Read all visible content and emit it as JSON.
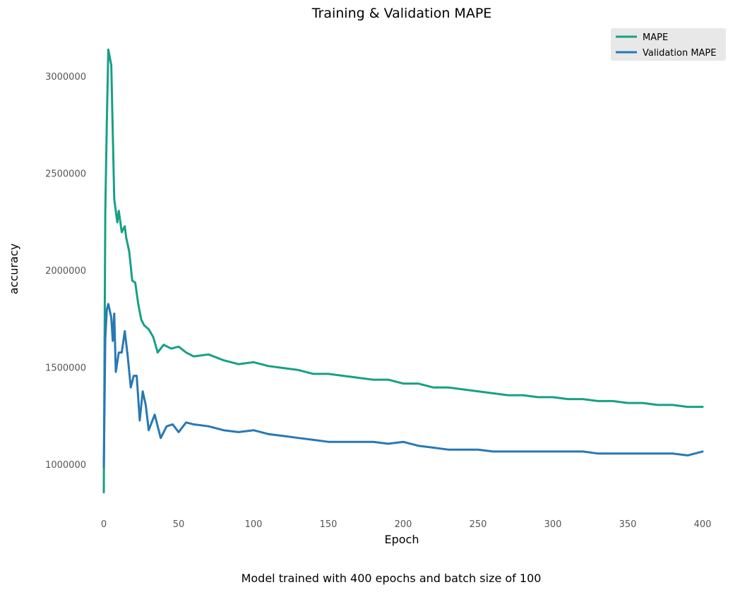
{
  "chart_data": {
    "type": "line",
    "title": "Training & Validation MAPE",
    "xlabel": "Epoch",
    "ylabel": "accuracy",
    "caption": "Model trained with 400 epochs and batch size of 100",
    "xlim": [
      0,
      400
    ],
    "ylim": [
      750000,
      3250000
    ],
    "xticks": [
      0,
      50,
      100,
      150,
      200,
      250,
      300,
      350,
      400
    ],
    "yticks": [
      1000000,
      1500000,
      2000000,
      2500000,
      3000000
    ],
    "grid": false,
    "legend_position": "top-right",
    "series": [
      {
        "name": "MAPE",
        "color": "#17a085",
        "points": [
          [
            0,
            860000
          ],
          [
            1,
            2300000
          ],
          [
            2,
            2750000
          ],
          [
            3,
            3140000
          ],
          [
            5,
            3060000
          ],
          [
            7,
            2370000
          ],
          [
            9,
            2250000
          ],
          [
            10,
            2310000
          ],
          [
            12,
            2200000
          ],
          [
            14,
            2230000
          ],
          [
            15,
            2170000
          ],
          [
            17,
            2100000
          ],
          [
            19,
            1950000
          ],
          [
            21,
            1940000
          ],
          [
            23,
            1830000
          ],
          [
            25,
            1750000
          ],
          [
            27,
            1720000
          ],
          [
            30,
            1700000
          ],
          [
            33,
            1660000
          ],
          [
            36,
            1580000
          ],
          [
            40,
            1620000
          ],
          [
            45,
            1600000
          ],
          [
            50,
            1610000
          ],
          [
            55,
            1580000
          ],
          [
            60,
            1560000
          ],
          [
            70,
            1570000
          ],
          [
            80,
            1540000
          ],
          [
            90,
            1520000
          ],
          [
            100,
            1530000
          ],
          [
            110,
            1510000
          ],
          [
            120,
            1500000
          ],
          [
            130,
            1490000
          ],
          [
            140,
            1470000
          ],
          [
            150,
            1470000
          ],
          [
            160,
            1460000
          ],
          [
            170,
            1450000
          ],
          [
            180,
            1440000
          ],
          [
            190,
            1440000
          ],
          [
            200,
            1420000
          ],
          [
            210,
            1420000
          ],
          [
            220,
            1400000
          ],
          [
            230,
            1400000
          ],
          [
            240,
            1390000
          ],
          [
            250,
            1380000
          ],
          [
            260,
            1370000
          ],
          [
            270,
            1360000
          ],
          [
            280,
            1360000
          ],
          [
            290,
            1350000
          ],
          [
            300,
            1350000
          ],
          [
            310,
            1340000
          ],
          [
            320,
            1340000
          ],
          [
            330,
            1330000
          ],
          [
            340,
            1330000
          ],
          [
            350,
            1320000
          ],
          [
            360,
            1320000
          ],
          [
            370,
            1310000
          ],
          [
            380,
            1310000
          ],
          [
            390,
            1300000
          ],
          [
            400,
            1300000
          ]
        ]
      },
      {
        "name": "Validation MAPE",
        "color": "#2878b5",
        "points": [
          [
            0,
            990000
          ],
          [
            1,
            1650000
          ],
          [
            2,
            1800000
          ],
          [
            3,
            1830000
          ],
          [
            5,
            1760000
          ],
          [
            6,
            1640000
          ],
          [
            7,
            1780000
          ],
          [
            8,
            1480000
          ],
          [
            10,
            1580000
          ],
          [
            12,
            1580000
          ],
          [
            14,
            1690000
          ],
          [
            16,
            1560000
          ],
          [
            18,
            1400000
          ],
          [
            20,
            1460000
          ],
          [
            22,
            1460000
          ],
          [
            24,
            1230000
          ],
          [
            26,
            1380000
          ],
          [
            28,
            1310000
          ],
          [
            30,
            1180000
          ],
          [
            34,
            1260000
          ],
          [
            38,
            1140000
          ],
          [
            42,
            1200000
          ],
          [
            46,
            1210000
          ],
          [
            50,
            1170000
          ],
          [
            55,
            1220000
          ],
          [
            60,
            1210000
          ],
          [
            70,
            1200000
          ],
          [
            80,
            1180000
          ],
          [
            90,
            1170000
          ],
          [
            100,
            1180000
          ],
          [
            110,
            1160000
          ],
          [
            120,
            1150000
          ],
          [
            130,
            1140000
          ],
          [
            140,
            1130000
          ],
          [
            150,
            1120000
          ],
          [
            160,
            1120000
          ],
          [
            170,
            1120000
          ],
          [
            180,
            1120000
          ],
          [
            190,
            1110000
          ],
          [
            200,
            1120000
          ],
          [
            210,
            1100000
          ],
          [
            220,
            1090000
          ],
          [
            230,
            1080000
          ],
          [
            240,
            1080000
          ],
          [
            250,
            1080000
          ],
          [
            260,
            1070000
          ],
          [
            270,
            1070000
          ],
          [
            280,
            1070000
          ],
          [
            290,
            1070000
          ],
          [
            300,
            1070000
          ],
          [
            310,
            1070000
          ],
          [
            320,
            1070000
          ],
          [
            330,
            1060000
          ],
          [
            340,
            1060000
          ],
          [
            350,
            1060000
          ],
          [
            360,
            1060000
          ],
          [
            370,
            1060000
          ],
          [
            380,
            1060000
          ],
          [
            390,
            1050000
          ],
          [
            400,
            1070000
          ]
        ]
      }
    ]
  }
}
